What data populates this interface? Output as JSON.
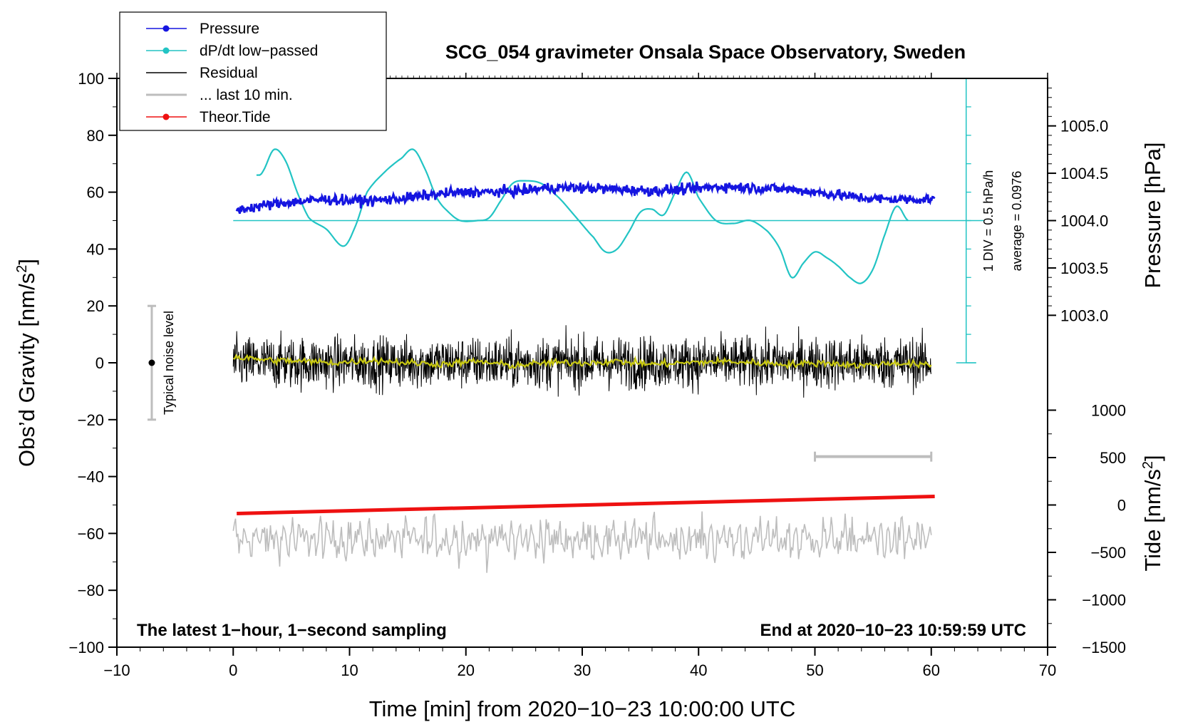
{
  "chart_data": {
    "type": "line",
    "title": "SCG_054 gravimeter Onsala Space Observatory, Sweden",
    "xlabel": "Time [min] from 2020−10−23 10:00:00 UTC",
    "xlim": [
      -10,
      70
    ],
    "x_ticks": [
      -10,
      0,
      10,
      20,
      30,
      40,
      50,
      60,
      70
    ],
    "x_tick_labels": [
      "−10",
      "0",
      "10",
      "20",
      "30",
      "40",
      "50",
      "60",
      "70"
    ],
    "left_axis": {
      "label_main": "Obs’d Gravity [nm/s",
      "label_sup": "2",
      "label_end": "]",
      "ylim": [
        -100,
        100
      ],
      "ticks": [
        100,
        80,
        60,
        40,
        20,
        0,
        -20,
        -40,
        -60,
        -80,
        -100
      ],
      "tick_labels": [
        "100",
        "80",
        "60",
        "40",
        "20",
        "0",
        "−20",
        "−40",
        "−60",
        "−80",
        "−100"
      ]
    },
    "right_pressure_axis": {
      "label": "Pressure [hPa]",
      "ticks": [
        1005.0,
        1004.5,
        1004.0,
        1003.5,
        1003.0
      ],
      "tick_labels": [
        "1005.0",
        "1004.5",
        "1004.0",
        "1003.5",
        "1003.0"
      ],
      "gravity_at_1004": 50,
      "gravity_per_hpa": 33.3
    },
    "right_tide_axis": {
      "label_main": "Tide [nm/s",
      "label_sup": "2",
      "label_end": "]",
      "ticks": [
        1000,
        500,
        0,
        -500,
        -1000,
        -1500
      ],
      "tick_labels": [
        "1000",
        "500",
        "0",
        "−500",
        "−1000",
        "−1500"
      ],
      "gravity_at_0": -50,
      "gravity_per_500": 16.67
    },
    "legend": [
      {
        "label": "Pressure",
        "color": "#1515e0",
        "marker": true
      },
      {
        "label": "dP/dt low−passed",
        "color": "#22c4c4",
        "marker": true
      },
      {
        "label": "Residual",
        "color": "#000000",
        "marker": false
      },
      {
        "label": "... last 10 min.",
        "color": "#bdbdbd",
        "marker": false
      },
      {
        "label": "Theor.Tide",
        "color": "#ee1111",
        "marker": true
      }
    ],
    "series": [
      {
        "name": "Pressure",
        "color": "#1515e0",
        "units": "nm/s2 (plot units)",
        "noise": 0.9,
        "x": [
          0.3,
          3,
          5,
          8,
          10,
          12,
          15,
          18,
          20,
          22,
          25,
          27,
          30,
          33,
          36,
          39,
          42,
          45,
          48,
          50,
          52,
          54,
          56,
          58,
          60.3
        ],
        "y": [
          53.7,
          55.5,
          56.5,
          57.5,
          57,
          57,
          58,
          59.5,
          60,
          60,
          60.5,
          61.5,
          61.5,
          61,
          60.5,
          61,
          62,
          61.5,
          61,
          60,
          59,
          58,
          57.5,
          57.5,
          57.5
        ]
      },
      {
        "name": "dP/dt low−passed",
        "color": "#22c4c4",
        "units": "nm/s2 (plot units)",
        "x": [
          2,
          2.5,
          3.5,
          4.5,
          5.5,
          6.5,
          8,
          9.5,
          10.5,
          11.5,
          13,
          14.5,
          15.5,
          16.5,
          17.5,
          18.5,
          19.5,
          21,
          22,
          23,
          24,
          25,
          26.5,
          28,
          29.5,
          31,
          32,
          33,
          34,
          35,
          36,
          37,
          38,
          39,
          40,
          41.5,
          43,
          44.5,
          46,
          47,
          48,
          49,
          50,
          51,
          52,
          53,
          54,
          55,
          56,
          57,
          58
        ],
        "y": [
          66,
          67,
          75,
          71,
          60,
          51,
          47,
          41,
          48,
          60,
          67,
          72,
          75,
          68,
          58,
          53,
          50,
          50,
          51,
          57,
          63,
          64,
          63,
          58,
          51,
          44,
          39,
          40,
          46,
          53,
          54,
          52,
          60,
          67,
          58,
          50,
          49,
          50,
          46,
          40,
          30,
          35,
          39,
          37,
          34,
          30,
          28,
          33,
          45,
          55,
          50
        ]
      },
      {
        "name": "dP/dt zero line (average = 0.0976)",
        "color": "#22c4c4",
        "x": [
          0,
          64.5
        ],
        "y": [
          50,
          50
        ]
      },
      {
        "name": "Residual",
        "color": "#000000",
        "units": "nm/s2",
        "noise": 4.5,
        "x": [
          0,
          60
        ],
        "y": [
          0,
          0
        ]
      },
      {
        "name": "Residual smoothed",
        "color": "#c8c812",
        "units": "nm/s2",
        "x": [
          0,
          3,
          6,
          9,
          12,
          15,
          18,
          21,
          24,
          27,
          30,
          33,
          36,
          39,
          42,
          45,
          48,
          51,
          54,
          57,
          60
        ],
        "y": [
          2,
          1,
          0.5,
          0,
          1,
          0,
          -0.5,
          0.5,
          -1,
          0,
          0,
          0.5,
          -0.5,
          0,
          0.5,
          0,
          -0.5,
          0,
          -1,
          0,
          -1
        ]
      },
      {
        "name": "... last 10 min.",
        "color": "#bdbdbd",
        "units": "nm/s2 (plot units)",
        "baseline": -62,
        "amplitude": 8,
        "x": [
          0,
          60
        ],
        "y": [
          -62,
          -62
        ]
      },
      {
        "name": "Theor.Tide",
        "color": "#ee1111",
        "units": "nm/s2 (plot units)",
        "x": [
          0.3,
          60.3
        ],
        "y": [
          -53,
          -47
        ]
      }
    ],
    "pressure_scale_bar": {
      "x": 63,
      "y_range": [
        0,
        100
      ],
      "minor_ticks": 10
    },
    "pressure_scale_text": [
      "1 DIV = 0.5 hPa/h",
      "average = 0.0976"
    ],
    "noise_bar": {
      "x": -7,
      "y_range": [
        -20,
        20
      ],
      "label": "Typical noise level"
    },
    "last10_bar": {
      "y": -33,
      "x_range": [
        50,
        60
      ]
    },
    "footer_left": "The latest 1−hour, 1−second sampling",
    "footer_right": "End at 2020−10−23 10:59:59 UTC"
  }
}
